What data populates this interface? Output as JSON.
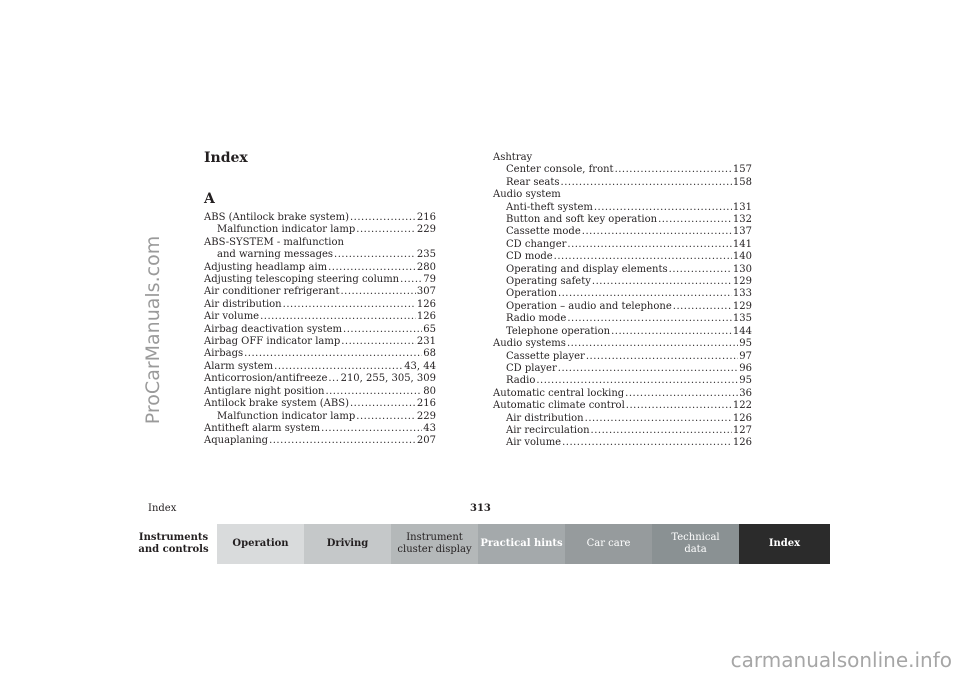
{
  "index_title": "Index",
  "section_letter": "A",
  "left_column": [
    {
      "text": "ABS (Antilock brake system)",
      "page": "216",
      "level": 0
    },
    {
      "text": "Malfunction indicator lamp",
      "page": "229",
      "level": 1
    },
    {
      "text": "ABS-SYSTEM - malfunction",
      "page": "",
      "level": 0
    },
    {
      "text": "and warning messages",
      "page": "235",
      "level": 1
    },
    {
      "text": "Adjusting headlamp aim",
      "page": "280",
      "level": 0
    },
    {
      "text": "Adjusting telescoping steering column",
      "page": "79",
      "level": 0
    },
    {
      "text": "Air conditioner refrigerant",
      "page": "307",
      "level": 0
    },
    {
      "text": "Air distribution",
      "page": "126",
      "level": 0
    },
    {
      "text": "Air volume",
      "page": "126",
      "level": 0
    },
    {
      "text": "Airbag deactivation system",
      "page": "65",
      "level": 0
    },
    {
      "text": "Airbag OFF indicator lamp",
      "page": "231",
      "level": 0
    },
    {
      "text": "Airbags",
      "page": "68",
      "level": 0
    },
    {
      "text": "Alarm system",
      "page": "43, 44",
      "level": 0
    },
    {
      "text": "Anticorrosion/antifreeze",
      "page": "210, 255, 305, 309",
      "level": 0
    },
    {
      "text": "Antiglare night position",
      "page": "80",
      "level": 0
    },
    {
      "text": "Antilock brake system (ABS)",
      "page": "216",
      "level": 0
    },
    {
      "text": "Malfunction indicator lamp",
      "page": "229",
      "level": 1
    },
    {
      "text": "Antitheft alarm system",
      "page": "43",
      "level": 0
    },
    {
      "text": "Aquaplaning",
      "page": "207",
      "level": 0
    }
  ],
  "right_column": [
    {
      "text": "Ashtray",
      "page": "",
      "level": 0
    },
    {
      "text": "Center console, front",
      "page": "157",
      "level": 1
    },
    {
      "text": "Rear seats",
      "page": "158",
      "level": 1
    },
    {
      "text": "Audio system",
      "page": "",
      "level": 0
    },
    {
      "text": "Anti-theft system",
      "page": "131",
      "level": 1
    },
    {
      "text": "Button and soft key operation",
      "page": "132",
      "level": 1
    },
    {
      "text": "Cassette mode",
      "page": "137",
      "level": 1
    },
    {
      "text": "CD changer",
      "page": "141",
      "level": 1
    },
    {
      "text": "CD mode",
      "page": "140",
      "level": 1
    },
    {
      "text": "Operating and display elements",
      "page": "130",
      "level": 1
    },
    {
      "text": "Operating safety",
      "page": "129",
      "level": 1
    },
    {
      "text": "Operation",
      "page": "133",
      "level": 1
    },
    {
      "text": "Operation – audio and telephone",
      "page": "129",
      "level": 1
    },
    {
      "text": "Radio mode",
      "page": "135",
      "level": 1
    },
    {
      "text": "Telephone operation",
      "page": "144",
      "level": 1
    },
    {
      "text": "Audio systems",
      "page": "95",
      "level": 0
    },
    {
      "text": "Cassette player",
      "page": "97",
      "level": 1
    },
    {
      "text": "CD player",
      "page": "96",
      "level": 1
    },
    {
      "text": "Radio",
      "page": "95",
      "level": 1
    },
    {
      "text": "Automatic central locking",
      "page": "36",
      "level": 0
    },
    {
      "text": "Automatic climate control",
      "page": "122",
      "level": 0
    },
    {
      "text": "Air distribution",
      "page": "126",
      "level": 1
    },
    {
      "text": "Air recirculation",
      "page": "127",
      "level": 1
    },
    {
      "text": "Air volume",
      "page": "126",
      "level": 1
    }
  ],
  "footer": {
    "section_label": "Index",
    "page_number": "313"
  },
  "tabs": [
    {
      "label": "Instruments\nand controls",
      "bg": "#ffffff",
      "fg": "#231f20",
      "bold": true
    },
    {
      "label": "Operation",
      "bg": "#d9dbdc",
      "fg": "#231f20",
      "bold": true
    },
    {
      "label": "Driving",
      "bg": "#c5c8c9",
      "fg": "#231f20",
      "bold": true
    },
    {
      "label": "Instrument\ncluster display",
      "bg": "#b4b8b9",
      "fg": "#231f20",
      "bold": false
    },
    {
      "label": "Practical hints",
      "bg": "#a4a9ab",
      "fg": "#ffffff",
      "bold": true
    },
    {
      "label": "Car care",
      "bg": "#969b9d",
      "fg": "#ffffff",
      "bold": false
    },
    {
      "label": "Technical\ndata",
      "bg": "#8a9193",
      "fg": "#ffffff",
      "bold": false
    },
    {
      "label": "Index",
      "bg": "#2b2b2b",
      "fg": "#ffffff",
      "bold": true
    }
  ],
  "watermarks": {
    "side": "ProCarManuals.com",
    "bottom": "carmanualsonline.info"
  }
}
